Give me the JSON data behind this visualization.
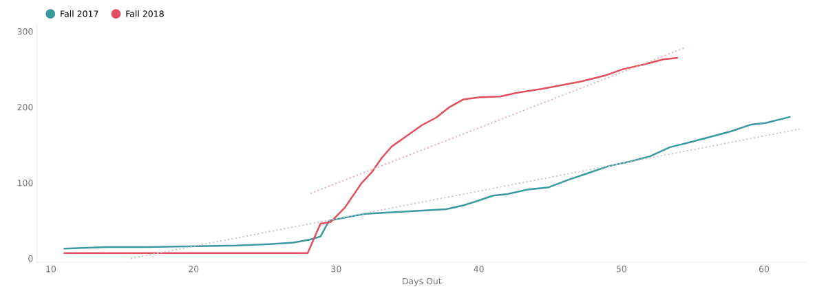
{
  "chart_data": {
    "type": "line",
    "xlabel": "Days Out",
    "xlim": [
      9,
      63
    ],
    "xticks": [
      10,
      20,
      30,
      40,
      50,
      60
    ],
    "ylim": [
      -5,
      310
    ],
    "yticks": [
      0,
      100,
      200,
      300
    ],
    "grid": false,
    "legend": "top left",
    "marker": "none",
    "series": [
      {
        "name": "Fall 2017",
        "color": "#3a9aa0",
        "x": [
          10.95,
          13.9,
          16.8,
          19.6,
          23.0,
          25.3,
          27.0,
          28.2,
          28.9,
          29.5,
          30.6,
          32.0,
          33.9,
          35.8,
          37.7,
          38.9,
          39.9,
          41.0,
          42.0,
          43.4,
          44.9,
          46.3,
          47.7,
          49.1,
          50.6,
          52.0,
          53.4,
          54.9,
          56.3,
          57.7,
          59.1,
          60.1,
          61.8
        ],
        "values": [
          13,
          15,
          15,
          16,
          17,
          19,
          21,
          25,
          29,
          50,
          54,
          59,
          61,
          63,
          65,
          70,
          76,
          83,
          85,
          91,
          94,
          104,
          113,
          122,
          128,
          135,
          147,
          154,
          161,
          168,
          177,
          179,
          187
        ]
      },
      {
        "name": "Fall 2018",
        "color": "#e0505f",
        "x": [
          10.95,
          28.0,
          28.9,
          29.6,
          30.6,
          31.8,
          32.5,
          33.2,
          33.9,
          35.1,
          36.0,
          37.0,
          37.95,
          38.9,
          40.1,
          41.5,
          42.7,
          44.4,
          45.8,
          47.2,
          48.9,
          50.1,
          51.5,
          52.95,
          53.9
        ],
        "values": [
          7,
          7,
          46,
          48,
          67,
          100,
          114,
          133,
          148,
          164,
          176,
          186,
          200,
          210,
          213,
          214,
          219,
          224,
          229,
          234,
          242,
          250,
          256,
          263,
          265
        ]
      },
      {
        "color": "#c8c8c8",
        "line_style": "dotted",
        "x": [
          15.6,
          62.5
        ],
        "values": [
          0,
          171
        ]
      },
      {
        "color": "#e8b0b5",
        "line_style": "dotted",
        "x": [
          28.2,
          54.4
        ],
        "values": [
          86,
          278
        ]
      }
    ]
  }
}
